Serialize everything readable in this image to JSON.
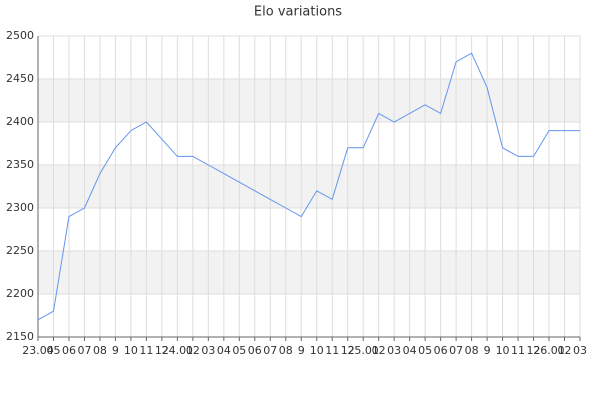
{
  "chart_data": {
    "type": "line",
    "title": "Elo variations",
    "categories": [
      "23.04",
      "05",
      "06",
      "07",
      "08",
      "9",
      "10",
      "11",
      "12",
      "24.01",
      "02",
      "03",
      "04",
      "05",
      "06",
      "07",
      "08",
      "9",
      "10",
      "11",
      "12",
      "25.01",
      "02",
      "03",
      "04",
      "05",
      "06",
      "07",
      "08",
      "9",
      "10",
      "11",
      "12",
      "26.01",
      "02",
      "03"
    ],
    "values": [
      2170,
      2180,
      2290,
      2300,
      2340,
      2370,
      2390,
      2400,
      2380,
      2360,
      2360,
      2350,
      2340,
      2330,
      2320,
      2310,
      2300,
      2290,
      2320,
      2310,
      2370,
      2370,
      2410,
      2400,
      2410,
      2420,
      2410,
      2470,
      2480,
      2440,
      2370,
      2360,
      2360,
      2390,
      2390,
      2390
    ],
    "color": "#6495ed",
    "ylim": [
      2150,
      2500
    ],
    "yticks": [
      2150,
      2200,
      2250,
      2300,
      2350,
      2400,
      2450,
      2500
    ],
    "grid": true,
    "alternate_bands": true,
    "band_color": "#f2f2f2"
  }
}
